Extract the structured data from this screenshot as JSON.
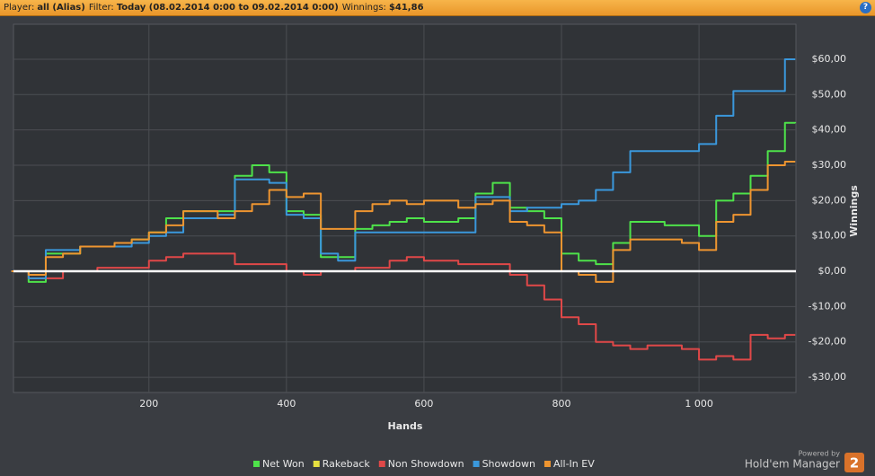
{
  "header": {
    "items": [
      {
        "label": "Player:",
        "value": "all (Alias)"
      },
      {
        "label": "Filter:",
        "value": "Today (08.02.2014 0:00 to 09.02.2014 0:00)"
      },
      {
        "label": "Winnings:",
        "value": "$41,86"
      }
    ],
    "help": "?"
  },
  "branding": {
    "powered": "Powered by",
    "product": "Hold'em Manager",
    "badge": "2"
  },
  "chart_data": {
    "type": "line",
    "x_label": "Hands",
    "y_label": "Winnings",
    "grid": true,
    "legend": "bottom",
    "xlim": [
      3,
      1141
    ],
    "ylim": [
      -34.3,
      69.9
    ],
    "xticks": [
      200,
      400,
      600,
      800,
      {
        "value": 1000,
        "label": "1 000"
      }
    ],
    "yticks": [
      {
        "value": -30,
        "label": "-$30,00"
      },
      {
        "value": -20,
        "label": "-$20,00"
      },
      {
        "value": -10,
        "label": "-$10,00"
      },
      {
        "value": 0,
        "label": "$0,00"
      },
      {
        "value": 10,
        "label": "$10,00"
      },
      {
        "value": 20,
        "label": "$20,00"
      },
      {
        "value": 30,
        "label": "$30,00"
      },
      {
        "value": 40,
        "label": "$40,00"
      },
      {
        "value": 50,
        "label": "$50,00"
      },
      {
        "value": 60,
        "label": "$60,00"
      }
    ],
    "x": [
      0,
      25,
      50,
      75,
      100,
      125,
      150,
      175,
      200,
      225,
      250,
      275,
      300,
      325,
      350,
      375,
      400,
      425,
      450,
      475,
      500,
      525,
      550,
      575,
      600,
      625,
      650,
      675,
      700,
      725,
      750,
      775,
      800,
      825,
      850,
      875,
      900,
      925,
      950,
      975,
      1000,
      1025,
      1050,
      1075,
      1100,
      1125,
      1140
    ],
    "series": [
      {
        "name": "Net Won",
        "color": "#4ee24a",
        "values": [
          0,
          -3,
          5,
          5,
          7,
          7,
          8,
          9,
          11,
          15,
          17,
          17,
          17,
          27,
          30,
          28,
          17,
          16,
          4,
          4,
          12,
          13,
          14,
          15,
          14,
          14,
          15,
          22,
          25,
          18,
          17,
          15,
          5,
          3,
          2,
          8,
          14,
          14,
          13,
          13,
          10,
          20,
          22,
          27,
          34,
          42,
          41.9
        ]
      },
      {
        "name": "Rakeback",
        "color": "#e6e040",
        "values": [
          0,
          0,
          0,
          0,
          0,
          0,
          0,
          0,
          0,
          0,
          0,
          0,
          0,
          0,
          0,
          0,
          0,
          0,
          0,
          0,
          0,
          0,
          0,
          0,
          0,
          0,
          0,
          0,
          0,
          0,
          0,
          0,
          0,
          0,
          0,
          0,
          0,
          0,
          0,
          0,
          0,
          0,
          0,
          0,
          0,
          0,
          0
        ]
      },
      {
        "name": "Non Showdown",
        "color": "#e04848",
        "values": [
          0,
          -2,
          -2,
          0,
          0,
          1,
          1,
          1,
          3,
          4,
          5,
          5,
          5,
          2,
          2,
          2,
          0,
          -1,
          0,
          0,
          1,
          1,
          3,
          4,
          3,
          3,
          2,
          2,
          2,
          -1,
          -4,
          -8,
          -13,
          -15,
          -20,
          -21,
          -22,
          -21,
          -21,
          -22,
          -25,
          -24,
          -25,
          -18,
          -19,
          -18,
          -18
        ]
      },
      {
        "name": "Showdown",
        "color": "#3a98dc",
        "values": [
          0,
          -2,
          6,
          6,
          7,
          7,
          7,
          8,
          10,
          11,
          15,
          15,
          16,
          26,
          26,
          25,
          16,
          15,
          5,
          3,
          11,
          11,
          11,
          11,
          11,
          11,
          11,
          21,
          21,
          17,
          18,
          18,
          19,
          20,
          23,
          28,
          34,
          34,
          34,
          34,
          36,
          44,
          51,
          51,
          51,
          60,
          60
        ]
      },
      {
        "name": "All-In EV",
        "color": "#ee9530",
        "values": [
          0,
          -1,
          4,
          5,
          7,
          7,
          8,
          9,
          11,
          13,
          17,
          17,
          15,
          17,
          19,
          23,
          21,
          22,
          12,
          12,
          17,
          19,
          20,
          19,
          20,
          20,
          18,
          19,
          20,
          14,
          13,
          11,
          0,
          -1,
          -3,
          6,
          9,
          9,
          9,
          8,
          6,
          14,
          16,
          23,
          30,
          31,
          31
        ]
      }
    ]
  }
}
